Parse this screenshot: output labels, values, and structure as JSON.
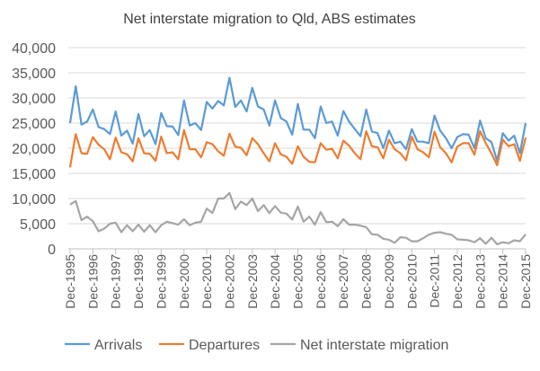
{
  "chart_data": {
    "type": "line",
    "title": "Net interstate migration to Qld, ABS estimates",
    "xlabel": "",
    "ylabel": "",
    "ylim": [
      0,
      40000
    ],
    "y_ticks": [
      "0",
      "5,000",
      "10,000",
      "15,000",
      "20,000",
      "25,000",
      "30,000",
      "35,000",
      "40,000"
    ],
    "y_tick_values": [
      0,
      5000,
      10000,
      15000,
      20000,
      25000,
      30000,
      35000,
      40000
    ],
    "x_tick_labels": [
      "Dec-1995",
      "Dec-1996",
      "Dec-1997",
      "Dec-1998",
      "Dec-1999",
      "Dec-2000",
      "Dec-2001",
      "Dec-2002",
      "Dec-2003",
      "Dec-2004",
      "Dec-2005",
      "Dec-2006",
      "Dec-2007",
      "Dec-2008",
      "Dec-2009",
      "Dec-2010",
      "Dec-2011",
      "Dec-2012",
      "Dec-2013",
      "Dec-2014",
      "Dec-2015"
    ],
    "x_frequency": "quarterly",
    "grid": true,
    "legend": "bottom",
    "series": [
      {
        "name": "Arrivals",
        "color": "#5B9BD5",
        "values": [
          25000,
          32300,
          24700,
          25300,
          27700,
          24200,
          23800,
          22800,
          27300,
          22500,
          23500,
          20900,
          26800,
          22400,
          23600,
          20800,
          27000,
          24400,
          24300,
          22600,
          29500,
          24500,
          25000,
          23600,
          29200,
          27900,
          29400,
          28500,
          34000,
          28200,
          29500,
          27300,
          32000,
          28300,
          27700,
          24500,
          29500,
          26000,
          25300,
          22700,
          28800,
          23700,
          23700,
          22000,
          28300,
          25000,
          25300,
          22500,
          27400,
          25300,
          23800,
          22400,
          27700,
          23300,
          23000,
          20000,
          23500,
          21000,
          21300,
          19800,
          23800,
          21300,
          21300,
          21000,
          26500,
          23500,
          22000,
          20000,
          22200,
          22800,
          22700,
          20000,
          25500,
          22000,
          21200,
          17500,
          23000,
          21500,
          22500,
          19000,
          25000
        ]
      },
      {
        "name": "Departures",
        "color": "#ED7D31",
        "values": [
          16200,
          22800,
          19000,
          18900,
          22200,
          20700,
          19800,
          17800,
          22100,
          19200,
          18800,
          17400,
          22000,
          19000,
          18900,
          17500,
          22300,
          19000,
          19200,
          17800,
          23600,
          19800,
          19800,
          18200,
          21200,
          20800,
          19400,
          18500,
          22900,
          20300,
          20100,
          18600,
          22000,
          20800,
          19000,
          17400,
          21000,
          18800,
          18300,
          16900,
          20400,
          18300,
          17300,
          17200,
          21000,
          19700,
          19900,
          18000,
          21500,
          20500,
          19000,
          17800,
          23400,
          20400,
          20200,
          18000,
          21700,
          19800,
          19000,
          17600,
          22300,
          19800,
          19200,
          18200,
          23300,
          20200,
          19000,
          17200,
          20300,
          21000,
          21000,
          18700,
          23400,
          21000,
          19000,
          16600,
          21700,
          20400,
          20800,
          17500,
          22100
        ]
      },
      {
        "name": "Net interstate migration",
        "color": "#A5A5A5",
        "values": [
          8800,
          9500,
          5700,
          6400,
          5500,
          3500,
          4000,
          5000,
          5200,
          3300,
          4700,
          3500,
          4800,
          3400,
          4700,
          3300,
          4700,
          5400,
          5100,
          4800,
          5900,
          4700,
          5200,
          5400,
          8000,
          7100,
          10000,
          10000,
          11100,
          7900,
          9400,
          8700,
          10000,
          7500,
          8700,
          7100,
          8500,
          7200,
          7000,
          5800,
          8400,
          5400,
          6400,
          4800,
          7300,
          5300,
          5400,
          4500,
          5900,
          4800,
          4800,
          4600,
          4300,
          2900,
          2800,
          2000,
          1800,
          1200,
          2300,
          2200,
          1500,
          1500,
          2100,
          2800,
          3200,
          3300,
          3000,
          2800,
          1900,
          1800,
          1700,
          1300,
          2100,
          1000,
          2200,
          900,
          1300,
          1100,
          1700,
          1500,
          2900
        ]
      }
    ]
  }
}
